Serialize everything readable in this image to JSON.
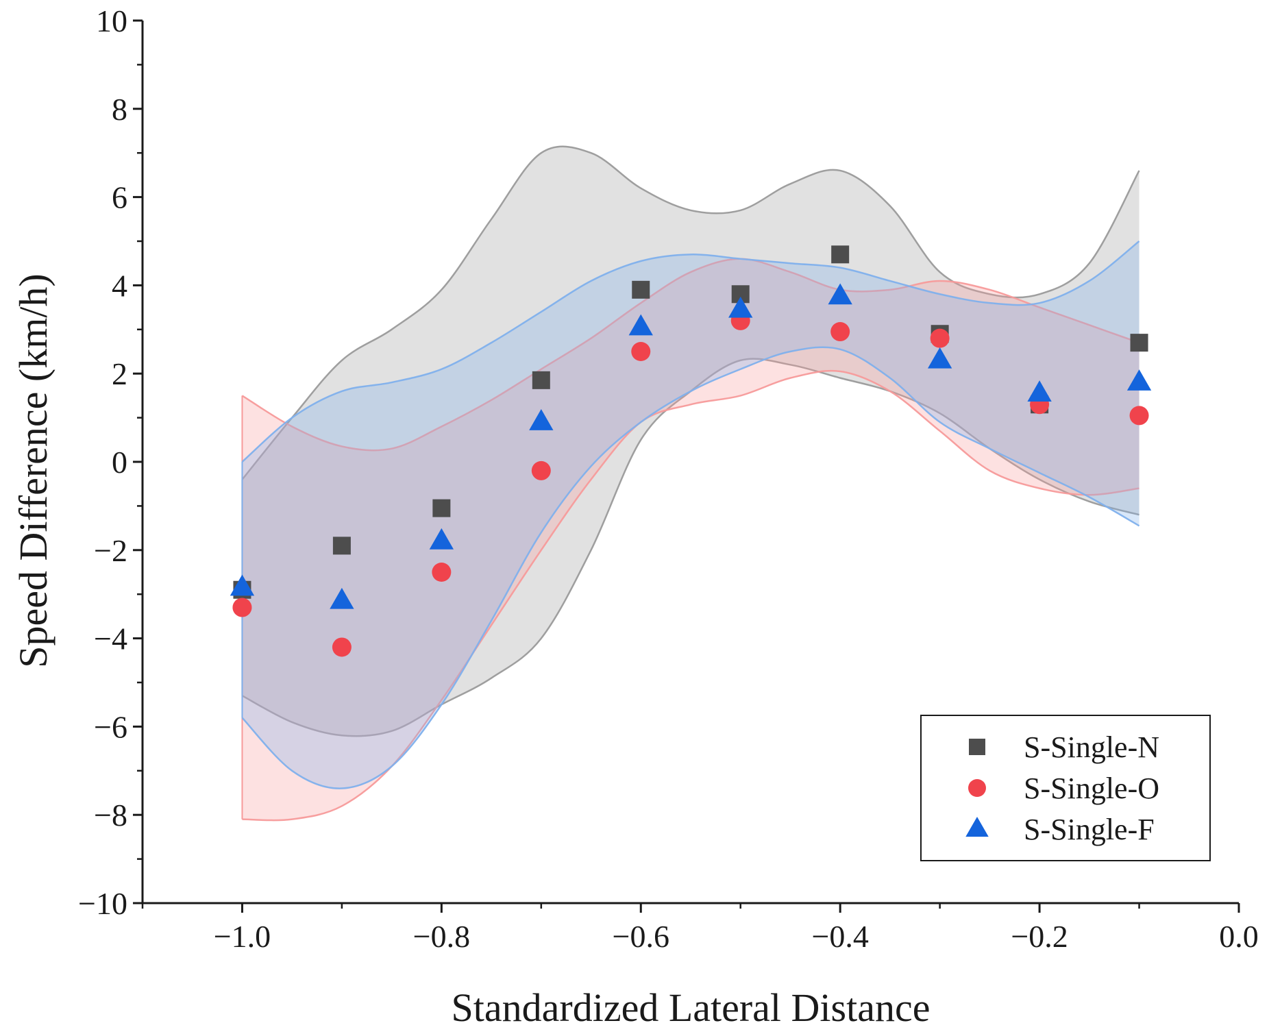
{
  "chart_data": {
    "type": "scatter",
    "title": "",
    "xlabel": "Standardized Lateral Distance",
    "ylabel": "Speed Difference (km/h)",
    "xlim": [
      -1.1,
      0.0
    ],
    "ylim": [
      -10,
      10
    ],
    "x_ticks": [
      -1.0,
      -0.8,
      -0.6,
      -0.4,
      -0.2,
      0.0
    ],
    "x_tick_labels": [
      "−1.0",
      "−0.8",
      "−0.6",
      "−0.4",
      "−0.2",
      "0.0"
    ],
    "y_ticks": [
      -10,
      -8,
      -6,
      -4,
      -2,
      0,
      2,
      4,
      6,
      8,
      10
    ],
    "y_tick_labels": [
      "−10",
      "−8",
      "−6",
      "−4",
      "−2",
      "0",
      "2",
      "4",
      "6",
      "8",
      "10"
    ],
    "grid": false,
    "legend_position": "bottom-right",
    "x": [
      -1.0,
      -0.9,
      -0.8,
      -0.7,
      -0.6,
      -0.5,
      -0.4,
      -0.3,
      -0.2,
      -0.1
    ],
    "series": [
      {
        "name": "S-Single-N",
        "marker": "square",
        "color": "#4d4d4d",
        "band_color": "#9a9a9a",
        "values": [
          -2.9,
          -1.9,
          -1.05,
          1.85,
          3.9,
          3.8,
          4.7,
          2.9,
          1.3,
          2.7
        ],
        "band_x": [
          -1.0,
          -0.95,
          -0.9,
          -0.85,
          -0.8,
          -0.75,
          -0.7,
          -0.65,
          -0.6,
          -0.55,
          -0.5,
          -0.45,
          -0.4,
          -0.35,
          -0.3,
          -0.25,
          -0.2,
          -0.15,
          -0.1
        ],
        "band_upper": [
          -0.4,
          1.0,
          2.3,
          3.0,
          3.9,
          5.5,
          7.0,
          7.0,
          6.2,
          5.7,
          5.7,
          6.3,
          6.6,
          5.8,
          4.3,
          3.8,
          3.8,
          4.5,
          6.6
        ],
        "band_lower": [
          -5.3,
          -5.9,
          -6.2,
          -6.1,
          -5.5,
          -4.9,
          -4.0,
          -2.0,
          0.5,
          1.6,
          2.3,
          2.2,
          1.9,
          1.6,
          1.1,
          0.3,
          -0.4,
          -0.9,
          -1.2
        ]
      },
      {
        "name": "S-Single-O",
        "marker": "circle",
        "color": "#f0434c",
        "band_color": "#f79a9a",
        "values": [
          -3.3,
          -4.2,
          -2.5,
          -0.2,
          2.5,
          3.2,
          2.95,
          2.8,
          1.3,
          1.05
        ],
        "band_x": [
          -1.0,
          -0.95,
          -0.9,
          -0.85,
          -0.8,
          -0.75,
          -0.7,
          -0.65,
          -0.6,
          -0.55,
          -0.5,
          -0.45,
          -0.4,
          -0.35,
          -0.3,
          -0.25,
          -0.2,
          -0.15,
          -0.1
        ],
        "band_upper": [
          1.5,
          0.8,
          0.35,
          0.3,
          0.8,
          1.4,
          2.1,
          2.8,
          3.6,
          4.3,
          4.6,
          4.3,
          3.9,
          3.9,
          4.1,
          3.9,
          3.5,
          3.1,
          2.7
        ],
        "band_lower": [
          -8.1,
          -8.1,
          -7.8,
          -6.9,
          -5.4,
          -3.7,
          -2.0,
          -0.4,
          0.9,
          1.3,
          1.5,
          1.9,
          2.05,
          1.6,
          0.7,
          -0.2,
          -0.6,
          -0.75,
          -0.6
        ]
      },
      {
        "name": "S-Single-F",
        "marker": "triangle",
        "color": "#1464dc",
        "band_color": "#7fb0ec",
        "values": [
          -2.85,
          -3.15,
          -1.8,
          0.9,
          3.05,
          3.45,
          3.75,
          2.3,
          1.55,
          1.8
        ],
        "band_x": [
          -1.0,
          -0.95,
          -0.9,
          -0.85,
          -0.8,
          -0.75,
          -0.7,
          -0.65,
          -0.6,
          -0.55,
          -0.5,
          -0.45,
          -0.4,
          -0.35,
          -0.3,
          -0.25,
          -0.2,
          -0.15,
          -0.1
        ],
        "band_upper": [
          0.0,
          1.0,
          1.6,
          1.8,
          2.1,
          2.7,
          3.4,
          4.1,
          4.55,
          4.7,
          4.6,
          4.5,
          4.4,
          4.1,
          3.8,
          3.6,
          3.6,
          4.1,
          5.0
        ],
        "band_lower": [
          -5.8,
          -7.0,
          -7.4,
          -6.9,
          -5.5,
          -3.6,
          -1.6,
          -0.1,
          0.9,
          1.6,
          2.1,
          2.5,
          2.55,
          1.9,
          0.9,
          0.3,
          -0.25,
          -0.8,
          -1.45
        ]
      }
    ]
  }
}
